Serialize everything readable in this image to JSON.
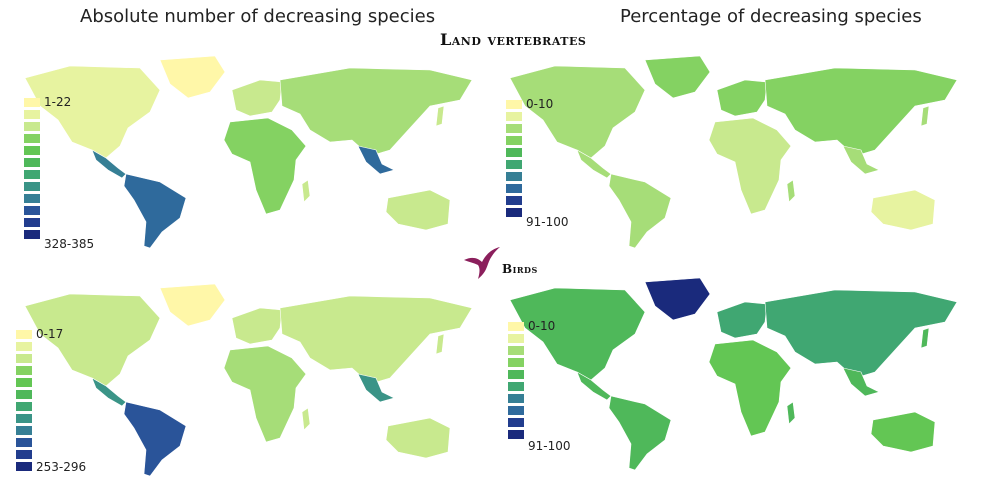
{
  "column_titles": {
    "left": "Absolute number of decreasing species",
    "right": "Percentage of decreasing species"
  },
  "sections": {
    "land_vertebrates": "Land vertebrates",
    "birds": "Birds"
  },
  "legends": {
    "land_abs": {
      "min": "1-22",
      "max": "328-385"
    },
    "land_pct": {
      "min": "0-10",
      "max": "91-100"
    },
    "birds_abs": {
      "min": "0-17",
      "max": "253-296"
    },
    "birds_pct": {
      "min": "0-10",
      "max": "91-100"
    }
  },
  "colors": {
    "scale": [
      "#fff7a8",
      "#e7f3a0",
      "#c8e98e",
      "#a6dd78",
      "#84d262",
      "#63c654",
      "#4fb85a",
      "#40a772",
      "#3a9487",
      "#367f95",
      "#2f6a9c",
      "#2a5499",
      "#223d8e",
      "#1a2a7c"
    ],
    "land": "#8fd26a",
    "bird_icon": "#8b1f5c"
  }
}
